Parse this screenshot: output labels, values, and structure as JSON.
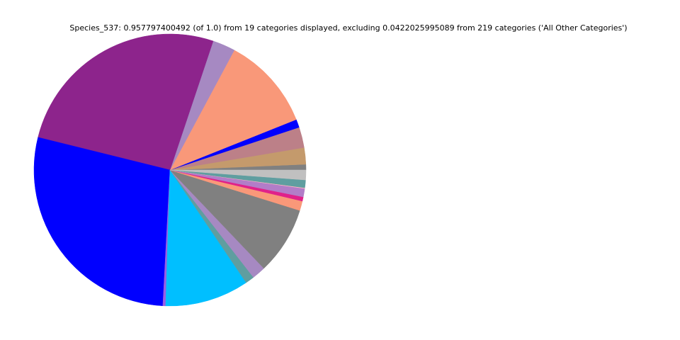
{
  "chart_data": {
    "type": "pie",
    "title": "Species_537: 0.957797400492 (of 1.0) from 19 categories displayed, excluding 0.0422025995089 from 219 categories ('All Other Categories')",
    "values": [
      0.0064,
      0.0189,
      0.0234,
      0.0093,
      0.1064,
      0.0258,
      0.2517,
      0.2684,
      0.0032,
      0.0955,
      0.0101,
      0.0154,
      0.0772,
      0.0109,
      0.0048,
      0.0096,
      0.0008,
      0.0088,
      0.0112
    ],
    "colors": [
      "#808080",
      "#c49a6c",
      "#bc8088",
      "#0000ff",
      "#f99879",
      "#a689c2",
      "#8d248c",
      "#0000ff",
      "#9b5de5",
      "#00bfff",
      "#5f9ea0",
      "#a689c2",
      "#808080",
      "#f99879",
      "#e0218a",
      "#b27dc8",
      "#ffb6c1",
      "#5f9ea0",
      "#c0c0c0"
    ]
  }
}
